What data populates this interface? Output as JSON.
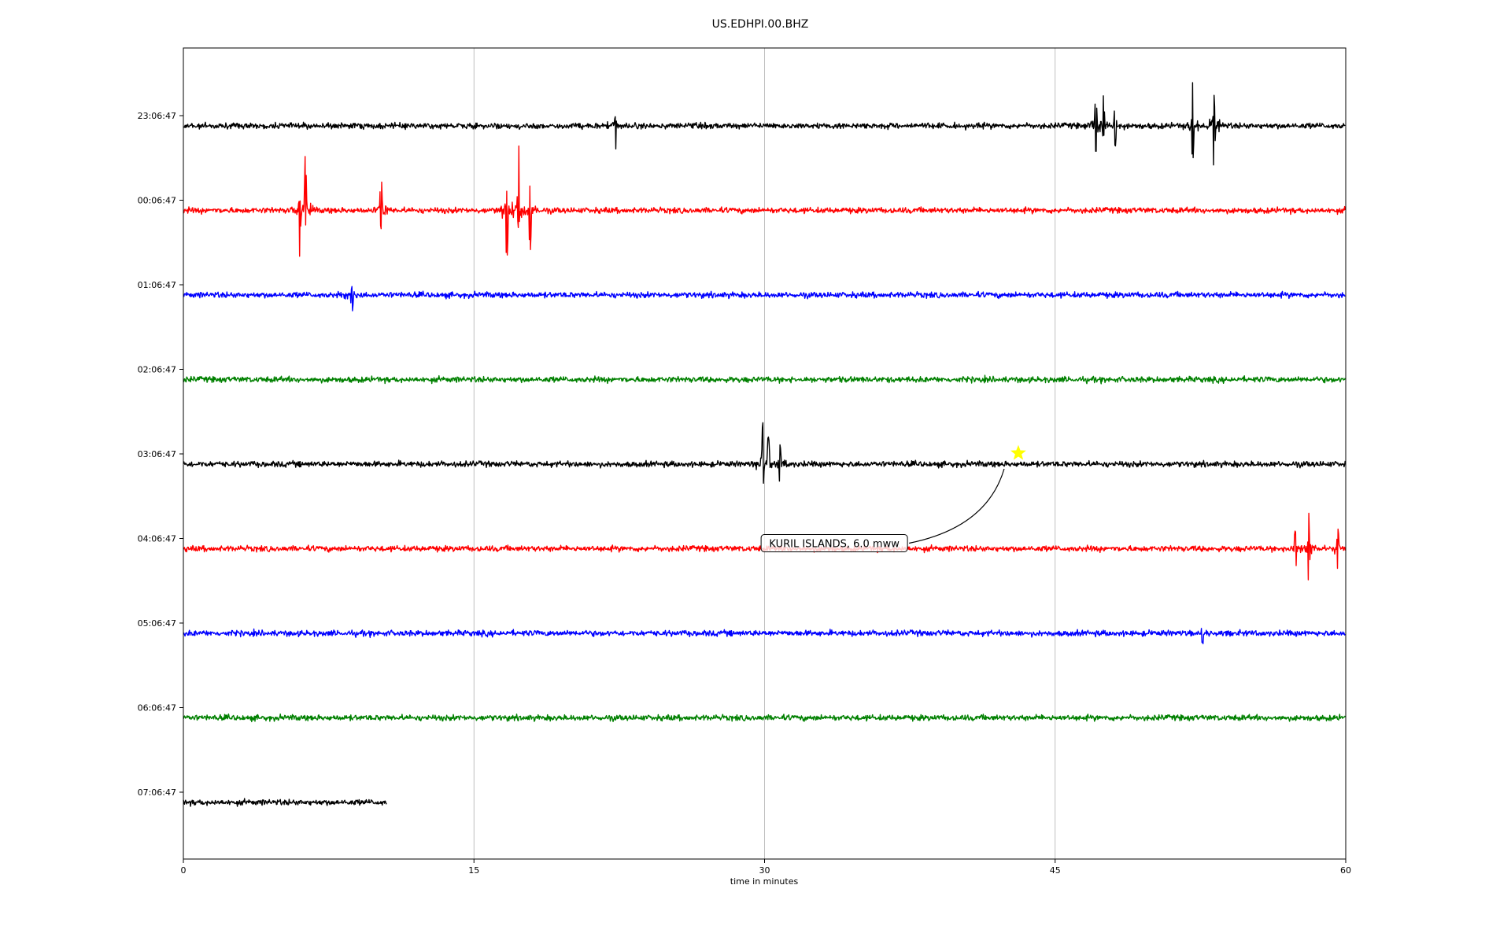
{
  "chart_data": {
    "type": "line",
    "title": "US.EDHPI.00.BHZ",
    "xlabel": "time in minutes",
    "ylabel": "",
    "xlim": [
      0,
      60
    ],
    "x_ticks": [
      0,
      15,
      30,
      45,
      60
    ],
    "grid": "vertical lines at x ticks",
    "row_labels": [
      "23:06:47",
      "00:06:47",
      "01:06:47",
      "02:06:47",
      "03:06:47",
      "04:06:47",
      "05:06:47",
      "06:06:47",
      "07:06:47"
    ],
    "row_colors": [
      "#000000",
      "#ff0000",
      "#0000ff",
      "#008000",
      "#000000",
      "#ff0000",
      "#0000ff",
      "#008000",
      "#000000"
    ],
    "rows": [
      {
        "label": "23:06:47",
        "color": "#000000",
        "end_minute": 60,
        "spikes": [
          {
            "x": 22.3,
            "up": 0.3,
            "down": 1.0
          },
          {
            "x": 47.1,
            "up": 1.4,
            "down": 1.0
          },
          {
            "x": 47.5,
            "up": 1.1,
            "down": 0.6
          },
          {
            "x": 48.1,
            "up": 0.9,
            "down": 0.8
          },
          {
            "x": 52.1,
            "up": 1.4,
            "down": 1.6
          },
          {
            "x": 53.2,
            "up": 0.8,
            "down": 1.8
          }
        ]
      },
      {
        "label": "00:06:47",
        "color": "#ff0000",
        "end_minute": 60,
        "spikes": [
          {
            "x": 6.0,
            "up": 0.4,
            "down": 1.4
          },
          {
            "x": 6.3,
            "up": 2.0,
            "down": 0.4
          },
          {
            "x": 10.2,
            "up": 1.7,
            "down": 0.7
          },
          {
            "x": 16.7,
            "up": 0.6,
            "down": 2.3
          },
          {
            "x": 17.3,
            "up": 2.7,
            "down": 0.6
          },
          {
            "x": 17.9,
            "up": 0.8,
            "down": 1.6
          }
        ]
      },
      {
        "label": "01:06:47",
        "color": "#0000ff",
        "end_minute": 60,
        "spikes": [
          {
            "x": 8.7,
            "up": 0.2,
            "down": 1.1
          }
        ]
      },
      {
        "label": "02:06:47",
        "color": "#008000",
        "end_minute": 60,
        "spikes": []
      },
      {
        "label": "03:06:47",
        "color": "#000000",
        "end_minute": 60,
        "spikes": [
          {
            "x": 29.9,
            "up": 1.4,
            "down": 1.2
          },
          {
            "x": 30.2,
            "up": 1.1,
            "down": 1.0
          },
          {
            "x": 30.8,
            "up": 0.7,
            "down": 0.8
          }
        ]
      },
      {
        "label": "04:06:47",
        "color": "#ff0000",
        "end_minute": 60,
        "spikes": [
          {
            "x": 57.4,
            "up": 0.9,
            "down": 1.2
          },
          {
            "x": 58.1,
            "up": 1.0,
            "down": 1.4
          },
          {
            "x": 59.6,
            "up": 0.8,
            "down": 0.9
          }
        ]
      },
      {
        "label": "05:06:47",
        "color": "#0000ff",
        "end_minute": 60,
        "spikes": [
          {
            "x": 52.6,
            "up": 0.4,
            "down": 0.4
          }
        ]
      },
      {
        "label": "06:06:47",
        "color": "#008000",
        "end_minute": 60,
        "spikes": []
      },
      {
        "label": "07:06:47",
        "color": "#000000",
        "end_minute": 10.5,
        "spikes": []
      }
    ],
    "event": {
      "label": "KURIL ISLANDS, 6.0 mww",
      "marker": "star",
      "marker_color": "#ffff00",
      "marker_row": "03:06:47",
      "marker_minute": 43.1,
      "label_row": "04:06:47",
      "label_minute": 33.6
    }
  }
}
